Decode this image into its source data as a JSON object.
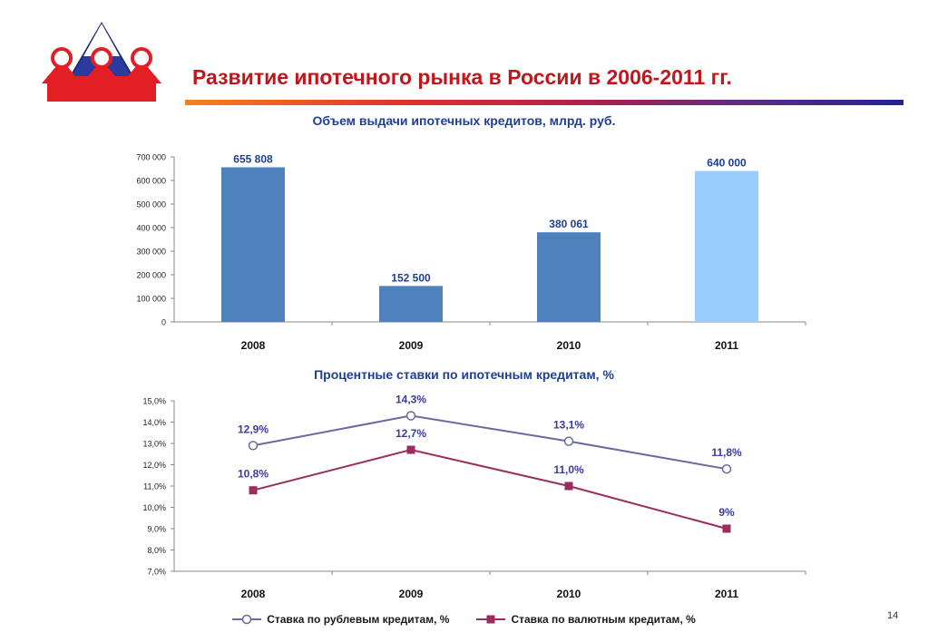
{
  "slide": {
    "title": "Развитие  ипотечного рынка в России в 2006-2011 гг.",
    "page_number": "14"
  },
  "colors": {
    "title": "#c0171c",
    "chart_title": "#1f3f94",
    "bar_main": "#4f81bd",
    "bar_highlight": "#99ccff",
    "ruble_series": "#6a6aa0",
    "currency_series": "#9b2d5e"
  },
  "chart_data": [
    {
      "type": "bar",
      "title": "Объем выдачи ипотечных кредитов, млрд. руб.",
      "categories": [
        "2008",
        "2009",
        "2010",
        "2011"
      ],
      "values": [
        655808,
        152500,
        380061,
        640000
      ],
      "data_labels": [
        "655 808",
        "152 500",
        "380 061",
        "640 000"
      ],
      "bar_colors": [
        "#4f81bd",
        "#4f81bd",
        "#4f81bd",
        "#99ccff"
      ],
      "ylim": [
        0,
        700000
      ],
      "yticks": [
        0,
        100000,
        200000,
        300000,
        400000,
        500000,
        600000,
        700000
      ],
      "ytick_labels": [
        "0",
        "100 000",
        "200 000",
        "300 000",
        "400 000",
        "500 000",
        "600 000",
        "700 000"
      ],
      "grid": false
    },
    {
      "type": "line",
      "title": "Процентные ставки по ипотечным кредитам, %",
      "categories": [
        "2008",
        "2009",
        "2010",
        "2011"
      ],
      "series": [
        {
          "name": "Ставка по рублевым кредитам, %",
          "values": [
            12.9,
            14.3,
            13.1,
            11.8
          ],
          "labels": [
            "12,9%",
            "14,3%",
            "13,1%",
            "11,8%"
          ],
          "color": "#6a6aa0",
          "marker": "circle"
        },
        {
          "name": "Ставка по валютным кредитам, %",
          "values": [
            10.8,
            12.7,
            11.0,
            9.0
          ],
          "labels": [
            "10,8%",
            "12,7%",
            "11,0%",
            "9%"
          ],
          "color": "#9b2d5e",
          "marker": "square"
        }
      ],
      "ylim": [
        7.0,
        15.0
      ],
      "yticks": [
        7,
        8,
        9,
        10,
        11,
        12,
        13,
        14,
        15
      ],
      "ytick_labels": [
        "7,0%",
        "8,0%",
        "9,0%",
        "10,0%",
        "11,0%",
        "12,0%",
        "13,0%",
        "14,0%",
        "15,0%"
      ],
      "legend_position": "bottom",
      "grid": false
    }
  ]
}
